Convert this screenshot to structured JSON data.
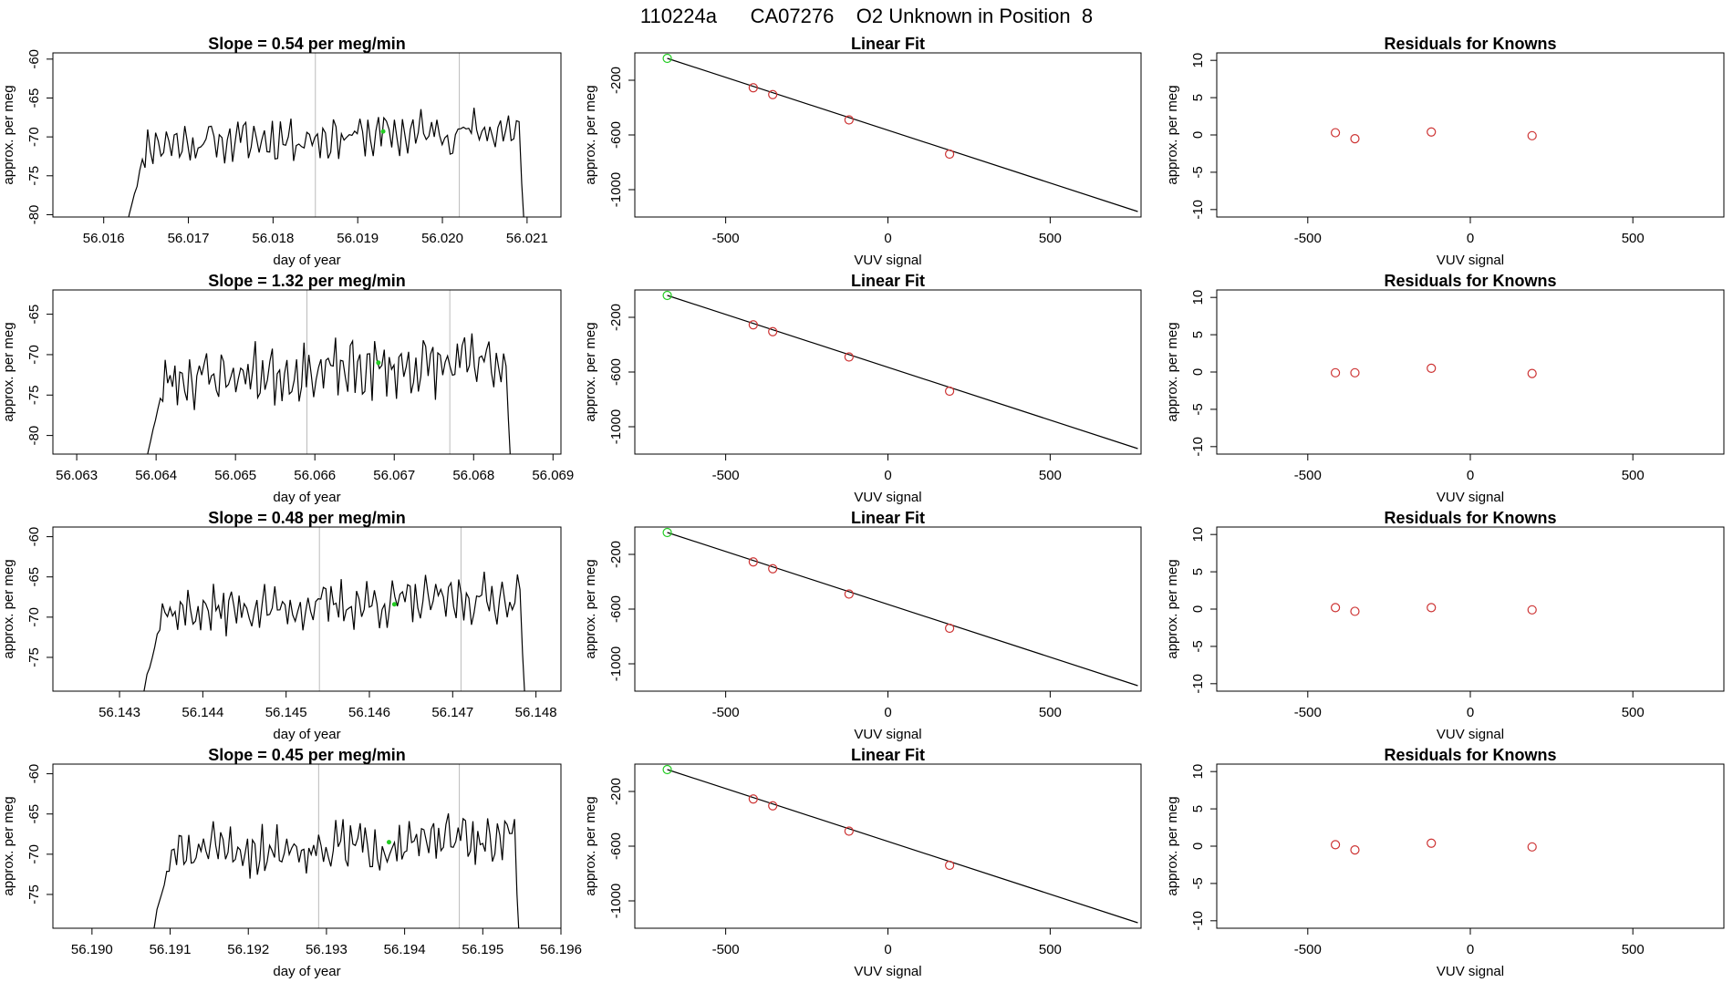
{
  "figure": {
    "title": "110224a      CA07276    O2 Unknown in Position  8"
  },
  "colors": {
    "line": "#000000",
    "known": "#cd3333",
    "unknown": "#22cc22",
    "vline": "#bbbbbb",
    "axis": "#000000"
  },
  "chart_data": [
    {
      "type": "line",
      "panel": "trace-1",
      "title": "Slope =  0.54  per meg/min",
      "xlabel": "day of year",
      "ylabel": "approx. per meg",
      "xlim": [
        56.0154,
        56.0214
      ],
      "ylim": [
        -80.3,
        -59.2
      ],
      "xticks": [
        "56.016",
        "56.017",
        "56.018",
        "56.019",
        "56.020",
        "56.021"
      ],
      "yticks": [
        "-60",
        "-65",
        "-70",
        "-75",
        "-80"
      ],
      "vlines": [
        56.0185,
        56.0202
      ],
      "trace_range": [
        56.0163,
        56.021
      ],
      "level": -70.0,
      "amp": 2.6,
      "seed": 11,
      "highlight": {
        "x": 56.0193,
        "y": -69.3
      }
    },
    {
      "type": "scatter",
      "panel": "fit-1",
      "title": "Linear Fit",
      "xlabel": "VUV signal",
      "ylabel": "approx. per meg",
      "xlim": [
        -780,
        780
      ],
      "ylim": [
        -1200,
        0
      ],
      "xticks": [
        "-500",
        "0",
        "500"
      ],
      "yticks": [
        "-200",
        "-600",
        "-1000"
      ],
      "fit_line": [
        [
          -680,
          -40
        ],
        [
          770,
          -1160
        ]
      ],
      "known": [
        [
          -415,
          -255
        ],
        [
          -355,
          -305
        ],
        [
          -120,
          -490
        ],
        [
          190,
          -740
        ]
      ],
      "unknown": [
        [
          -680,
          -40
        ]
      ]
    },
    {
      "type": "scatter",
      "panel": "resid-1",
      "title": "Residuals for Knowns",
      "xlabel": "VUV signal",
      "ylabel": "approx. per meg",
      "xlim": [
        -780,
        780
      ],
      "ylim": [
        -11,
        11
      ],
      "xticks": [
        "-500",
        "0",
        "500"
      ],
      "yticks": [
        "10",
        "5",
        "0",
        "-5",
        "-10"
      ],
      "known": [
        [
          -415,
          0.3
        ],
        [
          -355,
          -0.5
        ],
        [
          -120,
          0.4
        ],
        [
          190,
          -0.1
        ]
      ]
    },
    {
      "type": "line",
      "panel": "trace-2",
      "title": "Slope =  1.32  per meg/min",
      "xlabel": "day of year",
      "ylabel": "approx. per meg",
      "xlim": [
        56.0627,
        56.0691
      ],
      "ylim": [
        -82.3,
        -62.0
      ],
      "xticks": [
        "56.063",
        "56.064",
        "56.065",
        "56.066",
        "56.067",
        "56.068",
        "56.069"
      ],
      "yticks": [
        "-65",
        "-70",
        "-75",
        "-80"
      ],
      "vlines": [
        56.0659,
        56.0677
      ],
      "trace_range": [
        56.0639,
        56.0685
      ],
      "level": -72.0,
      "amp": 3.2,
      "seed": 23,
      "highlight": {
        "x": 56.0668,
        "y": -71.0
      }
    },
    {
      "type": "scatter",
      "panel": "fit-2",
      "title": "Linear Fit",
      "xlabel": "VUV signal",
      "ylabel": "approx. per meg",
      "xlim": [
        -780,
        780
      ],
      "ylim": [
        -1200,
        0
      ],
      "xticks": [
        "-500",
        "0",
        "500"
      ],
      "yticks": [
        "-200",
        "-600",
        "-1000"
      ],
      "fit_line": [
        [
          -680,
          -40
        ],
        [
          770,
          -1160
        ]
      ],
      "known": [
        [
          -415,
          -255
        ],
        [
          -355,
          -305
        ],
        [
          -120,
          -490
        ],
        [
          190,
          -740
        ]
      ],
      "unknown": [
        [
          -680,
          -40
        ]
      ]
    },
    {
      "type": "scatter",
      "panel": "resid-2",
      "title": "Residuals for Knowns",
      "xlabel": "VUV signal",
      "ylabel": "approx. per meg",
      "xlim": [
        -780,
        780
      ],
      "ylim": [
        -11,
        11
      ],
      "xticks": [
        "-500",
        "0",
        "500"
      ],
      "yticks": [
        "10",
        "5",
        "0",
        "-5",
        "-10"
      ],
      "known": [
        [
          -415,
          -0.1
        ],
        [
          -355,
          -0.1
        ],
        [
          -120,
          0.5
        ],
        [
          190,
          -0.2
        ]
      ]
    },
    {
      "type": "line",
      "panel": "trace-3",
      "title": "Slope =  0.48  per meg/min",
      "xlabel": "day of year",
      "ylabel": "approx. per meg",
      "xlim": [
        56.1422,
        56.1483
      ],
      "ylim": [
        -79.2,
        -58.8
      ],
      "xticks": [
        "56.143",
        "56.144",
        "56.145",
        "56.146",
        "56.147",
        "56.148"
      ],
      "yticks": [
        "-60",
        "-65",
        "-70",
        "-75"
      ],
      "vlines": [
        56.1454,
        56.1471
      ],
      "trace_range": [
        56.1433,
        56.1479
      ],
      "level": -68.5,
      "amp": 2.6,
      "seed": 37,
      "highlight": {
        "x": 56.1463,
        "y": -68.4
      }
    },
    {
      "type": "scatter",
      "panel": "fit-3",
      "title": "Linear Fit",
      "xlabel": "VUV signal",
      "ylabel": "approx. per meg",
      "xlim": [
        -780,
        780
      ],
      "ylim": [
        -1200,
        0
      ],
      "xticks": [
        "-500",
        "0",
        "500"
      ],
      "yticks": [
        "-200",
        "-600",
        "-1000"
      ],
      "fit_line": [
        [
          -680,
          -40
        ],
        [
          770,
          -1160
        ]
      ],
      "known": [
        [
          -415,
          -255
        ],
        [
          -355,
          -305
        ],
        [
          -120,
          -490
        ],
        [
          190,
          -740
        ]
      ],
      "unknown": [
        [
          -680,
          -40
        ]
      ]
    },
    {
      "type": "scatter",
      "panel": "resid-3",
      "title": "Residuals for Knowns",
      "xlabel": "VUV signal",
      "ylabel": "approx. per meg",
      "xlim": [
        -780,
        780
      ],
      "ylim": [
        -11,
        11
      ],
      "xticks": [
        "-500",
        "0",
        "500"
      ],
      "yticks": [
        "10",
        "5",
        "0",
        "-5",
        "-10"
      ],
      "known": [
        [
          -415,
          0.2
        ],
        [
          -355,
          -0.3
        ],
        [
          -120,
          0.2
        ],
        [
          190,
          -0.1
        ]
      ]
    },
    {
      "type": "line",
      "panel": "trace-4",
      "title": "Slope =  0.45  per meg/min",
      "xlabel": "day of year",
      "ylabel": "approx. per meg",
      "xlim": [
        56.1895,
        56.196
      ],
      "ylim": [
        -79.2,
        -58.8
      ],
      "xticks": [
        "56.190",
        "56.191",
        "56.192",
        "56.193",
        "56.194",
        "56.195",
        "56.196"
      ],
      "yticks": [
        "-60",
        "-65",
        "-70",
        "-75"
      ],
      "vlines": [
        56.1929,
        56.1947
      ],
      "trace_range": [
        56.1908,
        56.1955
      ],
      "level": -69.0,
      "amp": 2.8,
      "seed": 51,
      "highlight": {
        "x": 56.1938,
        "y": -68.5
      }
    },
    {
      "type": "scatter",
      "panel": "fit-4",
      "title": "Linear Fit",
      "xlabel": "VUV signal",
      "ylabel": "approx. per meg",
      "xlim": [
        -780,
        780
      ],
      "ylim": [
        -1200,
        0
      ],
      "xticks": [
        "-500",
        "0",
        "500"
      ],
      "yticks": [
        "-200",
        "-600",
        "-1000"
      ],
      "fit_line": [
        [
          -680,
          -40
        ],
        [
          770,
          -1160
        ]
      ],
      "known": [
        [
          -415,
          -255
        ],
        [
          -355,
          -305
        ],
        [
          -120,
          -490
        ],
        [
          190,
          -740
        ]
      ],
      "unknown": [
        [
          -680,
          -40
        ]
      ]
    },
    {
      "type": "scatter",
      "panel": "resid-4",
      "title": "Residuals for Knowns",
      "xlabel": "VUV signal",
      "ylabel": "approx. per meg",
      "xlim": [
        -780,
        780
      ],
      "ylim": [
        -11,
        11
      ],
      "xticks": [
        "-500",
        "0",
        "500"
      ],
      "yticks": [
        "10",
        "5",
        "0",
        "-5",
        "-10"
      ],
      "known": [
        [
          -415,
          0.2
        ],
        [
          -355,
          -0.5
        ],
        [
          -120,
          0.4
        ],
        [
          190,
          -0.1
        ]
      ]
    }
  ]
}
